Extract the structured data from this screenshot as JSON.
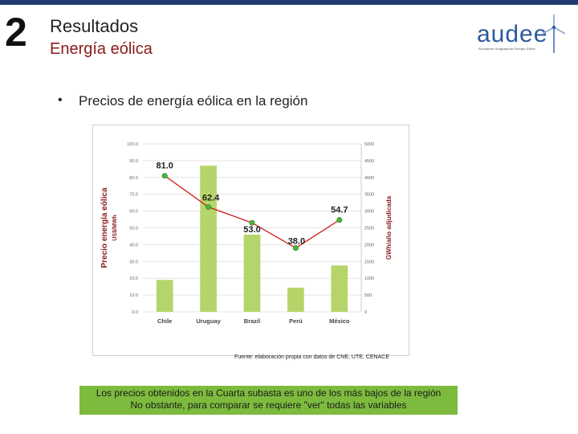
{
  "header": {
    "section_number": "2",
    "title": "Resultados",
    "subtitle": "Energía eólica"
  },
  "logo": {
    "name": "audee",
    "tagline": "Asociación Uruguaya de Energía Eólica"
  },
  "bullet": {
    "symbol": "•",
    "text": "Precios de energía eólica en la región"
  },
  "chart_data": {
    "type": "bar",
    "categories": [
      "Chile",
      "Uruguay",
      "Brazil",
      "Perú",
      "México"
    ],
    "series": [
      {
        "name": "GWh/año adjudicada",
        "kind": "bar",
        "axis": "right",
        "values": [
          950,
          4350,
          2300,
          720,
          1380
        ]
      },
      {
        "name": "Precio energía eólica US$/MWh",
        "kind": "line",
        "axis": "left",
        "values": [
          81.0,
          62.4,
          53.0,
          38.0,
          54.7
        ]
      }
    ],
    "data_labels": [
      "81.0",
      "62.4",
      "53.0",
      "38.0",
      "54.7"
    ],
    "ylabel_left": "Precio energía eólica",
    "ylabel_left_unit": "US$/MWh",
    "ylabel_right": "GWh/año adjudicada",
    "ylim_left": [
      0,
      100
    ],
    "ylim_right": [
      0,
      5000
    ],
    "left_ticks": [
      "0.0",
      "10.0",
      "20.0",
      "30.0",
      "40.0",
      "50.0",
      "60.0",
      "70.0",
      "80.0",
      "90.0",
      "100.0"
    ],
    "right_ticks": [
      "0",
      "500",
      "1000",
      "1500",
      "2000",
      "2500",
      "3000",
      "3500",
      "4000",
      "4500",
      "5000"
    ],
    "colors": {
      "bar": "#b5d56a",
      "line": "#d12a2a",
      "marker": "#49b33c"
    }
  },
  "source": "Fuente: elaboración propia con datos de CNE, UTE, CENACE",
  "note": {
    "line1": "Los precios obtenidos en la Cuarta subasta es uno de los más bajos de la región",
    "line2": "No obstante, para comparar se requiere \"ver\" todas las variables"
  }
}
